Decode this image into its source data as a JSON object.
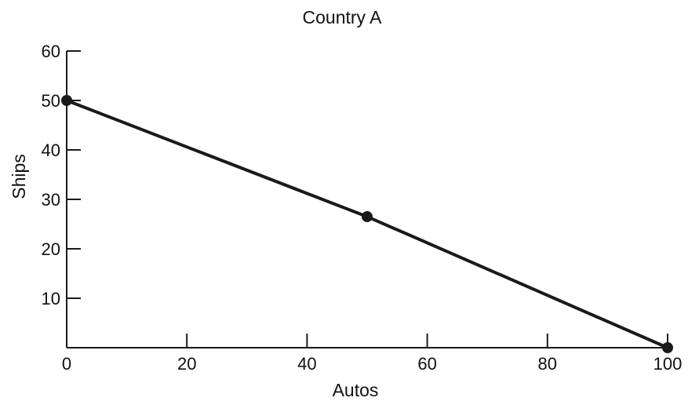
{
  "chart_data": {
    "type": "line",
    "title": "Country A",
    "xlabel": "Autos",
    "ylabel": "Ships",
    "xlim": [
      0,
      100
    ],
    "ylim": [
      0,
      60
    ],
    "xticks": [
      0,
      20,
      40,
      60,
      80,
      100
    ],
    "yticks": [
      10,
      20,
      30,
      40,
      50,
      60
    ],
    "grid": false,
    "series": [
      {
        "points": [
          {
            "x": 0,
            "y": 50
          },
          {
            "x": 50,
            "y": 26.5
          },
          {
            "x": 100,
            "y": 0
          }
        ]
      }
    ],
    "colors": {
      "line": "#1a1a1a",
      "axis": "#1a1a1a"
    }
  }
}
